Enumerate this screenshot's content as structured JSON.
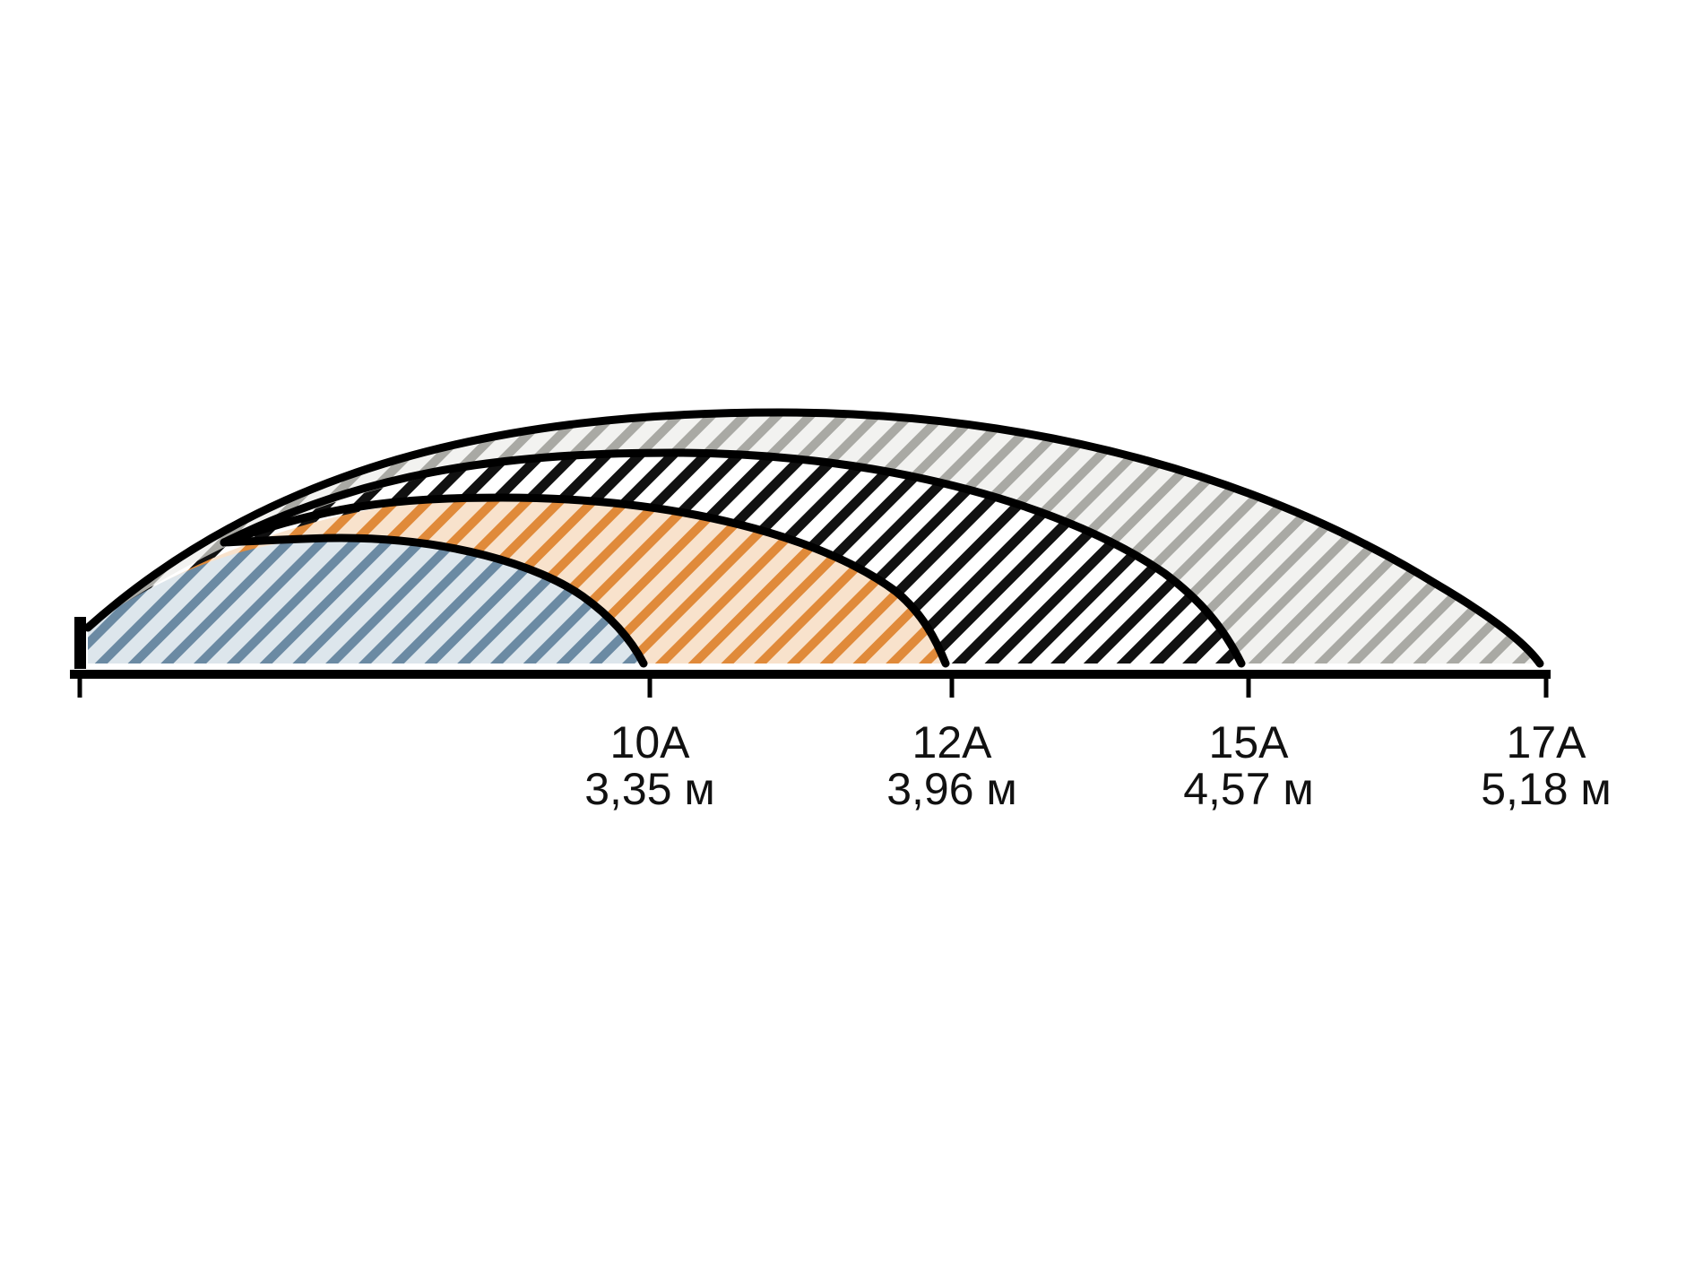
{
  "diagram": {
    "unit_hint": "м",
    "arcs": [
      {
        "code": "10A",
        "distance": "3,35 м",
        "color": "#6b8aa3",
        "stripe_light": "#d9e3ea"
      },
      {
        "code": "12A",
        "distance": "3,96 м",
        "color": "#e08a3a",
        "stripe_light": "#f6dcc0"
      },
      {
        "code": "15A",
        "distance": "4,57 м",
        "color": "#111111",
        "stripe_light": "#ffffff"
      },
      {
        "code": "17A",
        "distance": "5,18 м",
        "color": "#a9a9a4",
        "stripe_light": "#ededeb"
      }
    ]
  }
}
